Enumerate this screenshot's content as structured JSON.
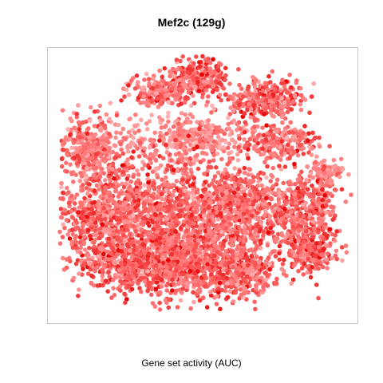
{
  "chart_data": {
    "type": "scatter",
    "title": "Mef2c (129g)",
    "xlabel": "Gene set activity (AUC)",
    "ylabel": "",
    "grid": false,
    "legend": "none",
    "color_scale": {
      "low": "#ffb3b3",
      "mid": "#ff6f6f",
      "high": "#e60000"
    },
    "marker": "filled circle",
    "note_points": "Approximately 6000 cells on a t-SNE embedding; individual values are not labeled."
  }
}
